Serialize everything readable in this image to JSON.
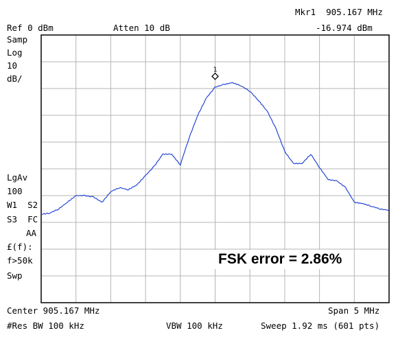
{
  "header": {
    "marker_line": "Mkr1  905.167 MHz",
    "ref_level": "Ref 0 dBm",
    "attenuation": "Atten 10 dB",
    "marker_amplitude": "-16.974 dBm"
  },
  "left_panel": {
    "lines": [
      "Samp",
      "Log",
      "10",
      "dB/"
    ],
    "lower_lines": [
      "LgAv",
      "100",
      "W1  S2",
      "S3  FC",
      "AA",
      "£(f):",
      "f>50k",
      "Swp"
    ]
  },
  "footer": {
    "center": "Center 905.167 MHz",
    "span": "Span 5 MHz",
    "rbw": "#Res BW 100 kHz",
    "vbw": "VBW 100 kHz",
    "sweep": "Sweep 1.92 ms (601 pts)"
  },
  "annotation": "FSK error = 2.86%",
  "colors": {
    "trace": "#2346d6",
    "grid": "#b4b4b4",
    "frame": "#000000"
  },
  "chart_data": {
    "type": "line",
    "title": "",
    "xlabel": "",
    "ylabel": "",
    "x_unit": "MHz",
    "y_unit": "dBm",
    "xlim": [
      902.667,
      907.667
    ],
    "ylim": [
      -100,
      0
    ],
    "grid": true,
    "marker": {
      "label": "1",
      "x": 905.167,
      "y": -16.974
    },
    "series": [
      {
        "x": [
          902.667,
          902.792,
          902.917,
          903.042,
          903.167,
          903.292,
          903.417,
          903.542,
          903.667,
          903.792,
          903.917,
          904.042,
          904.167,
          904.292,
          904.417,
          904.542,
          904.667,
          904.792,
          904.917,
          905.042,
          905.167,
          905.292,
          905.417,
          905.542,
          905.667,
          905.792,
          905.917,
          906.042,
          906.167,
          906.292,
          906.417,
          906.542,
          906.667,
          906.792,
          906.917,
          907.042,
          907.167,
          907.292,
          907.417,
          907.542,
          907.667
        ],
        "y": [
          -67.0,
          -66.5,
          -65.0,
          -62.5,
          -60.0,
          -60.0,
          -60.5,
          -62.5,
          -58.5,
          -57.0,
          -57.8,
          -56.0,
          -52.5,
          -49.0,
          -44.5,
          -44.5,
          -48.5,
          -38.5,
          -30.0,
          -23.5,
          -19.5,
          -18.5,
          -17.8,
          -19.0,
          -21.0,
          -24.5,
          -28.5,
          -35.0,
          -43.5,
          -48.0,
          -48.0,
          -44.5,
          -49.5,
          -54.0,
          -54.5,
          -57.0,
          -62.5,
          -63.0,
          -64.0,
          -65.0,
          -65.5
        ]
      }
    ]
  }
}
